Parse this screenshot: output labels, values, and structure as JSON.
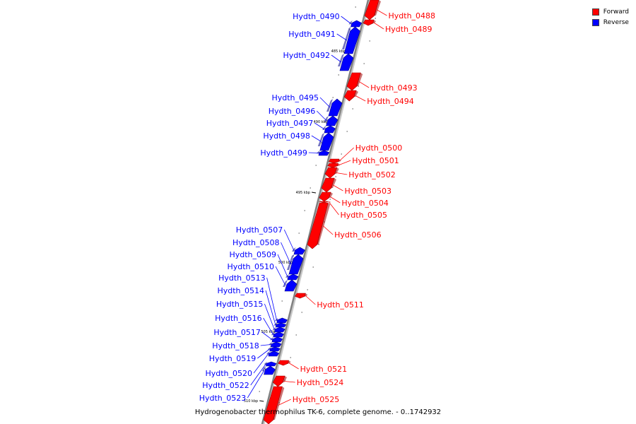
{
  "caption": "Hydrogenobacter thermophilus TK-6, complete genome. - 0..1742932",
  "legend": [
    {
      "label": "Forward",
      "color": "#ff0000"
    },
    {
      "label": "Reverse",
      "color": "#0000ff"
    }
  ],
  "colors": {
    "forward": "#ff0000",
    "reverse": "#0000ff",
    "backbone": "#808080",
    "tick": "#000000"
  },
  "ticks": [
    {
      "label": "485 kbp",
      "pos": 72
    },
    {
      "label": "490 kbp",
      "pos": 172
    },
    {
      "label": "495 kbp",
      "pos": 272
    },
    {
      "label": "500 kbp",
      "pos": 371
    },
    {
      "label": "505 kbp",
      "pos": 469
    },
    {
      "label": "510 kbp",
      "pos": 567
    }
  ],
  "genes": [
    {
      "name": "Hydth_0488",
      "strand": "forward",
      "start": 0,
      "end": 28,
      "labelPos": 22
    },
    {
      "name": "Hydth_0489",
      "strand": "forward",
      "start": 28,
      "end": 36,
      "labelPos": 41
    },
    {
      "name": "Hydth_0490",
      "strand": "reverse",
      "start": 29,
      "end": 38,
      "labelPos": 23
    },
    {
      "name": "Hydth_0491",
      "strand": "reverse",
      "start": 38,
      "end": 76,
      "labelPos": 48
    },
    {
      "name": "Hydth_0492",
      "strand": "reverse",
      "start": 76,
      "end": 100,
      "labelPos": 78
    },
    {
      "name": "Hydth_0493",
      "strand": "forward",
      "start": 103,
      "end": 128,
      "labelPos": 124
    },
    {
      "name": "Hydth_0494",
      "strand": "forward",
      "start": 128,
      "end": 143,
      "labelPos": 143
    },
    {
      "name": "Hydth_0495",
      "strand": "reverse",
      "start": 140,
      "end": 164,
      "labelPos": 138
    },
    {
      "name": "Hydth_0496",
      "strand": "reverse",
      "start": 164,
      "end": 178,
      "labelPos": 157
    },
    {
      "name": "Hydth_0497",
      "strand": "reverse",
      "start": 178,
      "end": 188,
      "labelPos": 174
    },
    {
      "name": "Hydth_0498",
      "strand": "reverse",
      "start": 188,
      "end": 213,
      "labelPos": 192
    },
    {
      "name": "Hydth_0499",
      "strand": "reverse",
      "start": 213,
      "end": 220,
      "labelPos": 216
    },
    {
      "name": "Hydth_0500",
      "strand": "forward",
      "start": 225,
      "end": 231,
      "labelPos": 209
    },
    {
      "name": "Hydth_0501",
      "strand": "forward",
      "start": 231,
      "end": 237,
      "labelPos": 227
    },
    {
      "name": "Hydth_0502",
      "strand": "forward",
      "start": 237,
      "end": 252,
      "labelPos": 247
    },
    {
      "name": "Hydth_0503",
      "strand": "forward",
      "start": 252,
      "end": 272,
      "labelPos": 270
    },
    {
      "name": "Hydth_0504",
      "strand": "forward",
      "start": 272,
      "end": 285,
      "labelPos": 287
    },
    {
      "name": "Hydth_0505",
      "strand": "forward",
      "start": 285,
      "end": 287,
      "labelPos": 304
    },
    {
      "name": "Hydth_0506",
      "strand": "forward",
      "start": 287,
      "end": 352,
      "labelPos": 332
    },
    {
      "name": "Hydth_0507",
      "strand": "reverse",
      "start": 350,
      "end": 360,
      "labelPos": 325
    },
    {
      "name": "Hydth_0508",
      "strand": "reverse",
      "start": 360,
      "end": 388,
      "labelPos": 343
    },
    {
      "name": "Hydth_0509",
      "strand": "reverse",
      "start": 388,
      "end": 396,
      "labelPos": 360
    },
    {
      "name": "Hydth_0510",
      "strand": "reverse",
      "start": 396,
      "end": 412,
      "labelPos": 377
    },
    {
      "name": "Hydth_0511",
      "strand": "forward",
      "start": 415,
      "end": 422,
      "labelPos": 431
    },
    {
      "name": "Hydth_0513",
      "strand": "reverse",
      "start": 450,
      "end": 457,
      "labelPos": 393
    },
    {
      "name": "Hydth_0514",
      "strand": "reverse",
      "start": 457,
      "end": 463,
      "labelPos": 411
    },
    {
      "name": "Hydth_0515",
      "strand": "reverse",
      "start": 463,
      "end": 470,
      "labelPos": 430
    },
    {
      "name": "Hydth_0516",
      "strand": "reverse",
      "start": 470,
      "end": 477,
      "labelPos": 450
    },
    {
      "name": "Hydth_0517",
      "strand": "reverse",
      "start": 477,
      "end": 484,
      "labelPos": 470
    },
    {
      "name": "Hydth_0518",
      "strand": "reverse",
      "start": 484,
      "end": 491,
      "labelPos": 489
    },
    {
      "name": "Hydth_0519",
      "strand": "reverse",
      "start": 491,
      "end": 497,
      "labelPos": 507
    },
    {
      "name": "Hydth_0520",
      "strand": "reverse",
      "start": 497,
      "end": 504,
      "labelPos": 528
    },
    {
      "name": "Hydth_0521",
      "strand": "forward",
      "start": 510,
      "end": 517,
      "labelPos": 522
    },
    {
      "name": "Hydth_0522",
      "strand": "reverse",
      "start": 512,
      "end": 518,
      "labelPos": 545
    },
    {
      "name": "Hydth_0523",
      "strand": "reverse",
      "start": 518,
      "end": 530,
      "labelPos": 563
    },
    {
      "name": "Hydth_0524",
      "strand": "forward",
      "start": 532,
      "end": 547,
      "labelPos": 541
    },
    {
      "name": "Hydth_0525",
      "strand": "forward",
      "start": 547,
      "end": 600,
      "labelPos": 565
    }
  ]
}
